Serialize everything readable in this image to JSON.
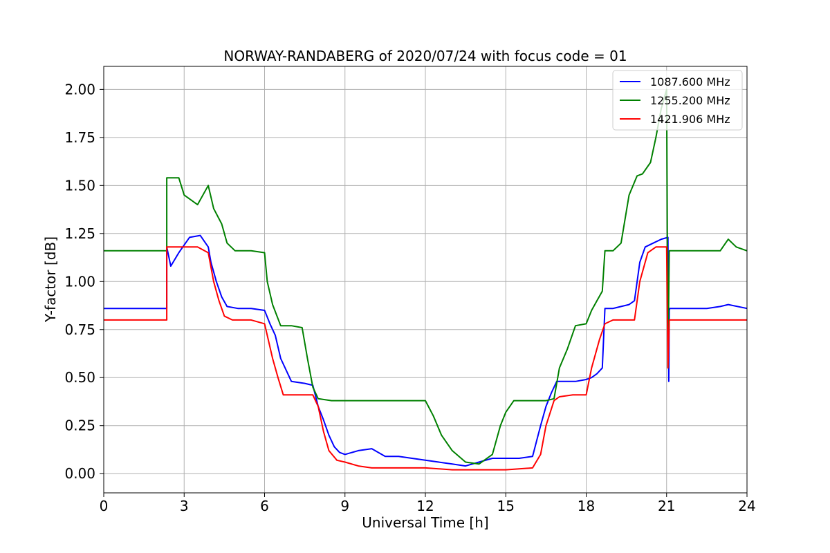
{
  "chart_data": {
    "type": "line",
    "title": "NORWAY-RANDABERG of 2020/07/24 with focus code = 01",
    "xlabel": "Universal Time [h]",
    "ylabel": "Y-factor [dB]",
    "xlim": [
      0,
      24
    ],
    "ylim": [
      -0.1,
      2.12
    ],
    "xticks": [
      0,
      3,
      6,
      9,
      12,
      15,
      18,
      21,
      24
    ],
    "xtick_labels": [
      "0",
      "3",
      "6",
      "9",
      "12",
      "15",
      "18",
      "21",
      "24"
    ],
    "yticks": [
      0.0,
      0.25,
      0.5,
      0.75,
      1.0,
      1.25,
      1.5,
      1.75,
      2.0
    ],
    "ytick_labels": [
      "0.00",
      "0.25",
      "0.50",
      "0.75",
      "1.00",
      "1.25",
      "1.50",
      "1.75",
      "2.00"
    ],
    "grid": true,
    "legend_position": "top-right",
    "series": [
      {
        "name": "1087.600 MHz",
        "color": "#0000ff",
        "x": [
          0,
          2.35,
          2.35,
          2.5,
          2.8,
          3.2,
          3.6,
          3.9,
          4.0,
          4.2,
          4.4,
          4.6,
          5.0,
          5.5,
          6.0,
          6.2,
          6.4,
          6.6,
          7.0,
          7.5,
          7.8,
          8.0,
          8.2,
          8.4,
          8.6,
          8.8,
          9.0,
          9.5,
          10.0,
          10.5,
          11.0,
          11.5,
          12.0,
          12.5,
          13.0,
          13.5,
          14.0,
          14.5,
          15.0,
          15.5,
          16.0,
          16.3,
          16.5,
          16.7,
          16.9,
          17.2,
          17.6,
          18.0,
          18.2,
          18.4,
          18.6,
          18.7,
          19.0,
          19.3,
          19.6,
          19.8,
          20.0,
          20.2,
          20.5,
          20.8,
          21.05,
          21.08,
          21.1,
          21.12,
          22.0,
          22.5,
          23.0,
          23.3,
          24.0
        ],
        "y": [
          0.86,
          0.86,
          1.18,
          1.08,
          1.15,
          1.23,
          1.24,
          1.18,
          1.1,
          1.0,
          0.92,
          0.87,
          0.86,
          0.86,
          0.85,
          0.78,
          0.72,
          0.6,
          0.48,
          0.47,
          0.46,
          0.35,
          0.28,
          0.2,
          0.14,
          0.11,
          0.1,
          0.12,
          0.13,
          0.09,
          0.09,
          0.08,
          0.07,
          0.06,
          0.05,
          0.04,
          0.06,
          0.08,
          0.08,
          0.08,
          0.09,
          0.25,
          0.35,
          0.42,
          0.48,
          0.48,
          0.48,
          0.49,
          0.5,
          0.52,
          0.55,
          0.86,
          0.86,
          0.87,
          0.88,
          0.9,
          1.1,
          1.18,
          1.2,
          1.22,
          1.23,
          0.48,
          0.85,
          0.86,
          0.86,
          0.86,
          0.87,
          0.88,
          0.86
        ]
      },
      {
        "name": "1255.200 MHz",
        "color": "#008000",
        "x": [
          0,
          2.35,
          2.35,
          2.8,
          3.0,
          3.5,
          3.9,
          4.1,
          4.4,
          4.6,
          4.9,
          5.5,
          6.0,
          6.1,
          6.3,
          6.6,
          7.0,
          7.4,
          7.6,
          7.8,
          8.0,
          8.5,
          9.0,
          10.0,
          11.0,
          11.5,
          12.0,
          12.3,
          12.6,
          13.0,
          13.5,
          14.0,
          14.5,
          14.8,
          15.0,
          15.3,
          15.7,
          16.0,
          16.5,
          16.8,
          17.0,
          17.3,
          17.6,
          18.0,
          18.2,
          18.4,
          18.6,
          18.7,
          19.0,
          19.3,
          19.6,
          19.9,
          20.1,
          20.4,
          20.6,
          20.8,
          21.0,
          21.05,
          21.1,
          22.0,
          22.5,
          23.0,
          23.3,
          23.6,
          24.0
        ],
        "y": [
          1.16,
          1.16,
          1.54,
          1.54,
          1.45,
          1.4,
          1.5,
          1.38,
          1.3,
          1.2,
          1.16,
          1.16,
          1.15,
          1.0,
          0.88,
          0.77,
          0.77,
          0.76,
          0.6,
          0.45,
          0.39,
          0.38,
          0.38,
          0.38,
          0.38,
          0.38,
          0.38,
          0.3,
          0.2,
          0.12,
          0.06,
          0.05,
          0.1,
          0.25,
          0.32,
          0.38,
          0.38,
          0.38,
          0.38,
          0.39,
          0.55,
          0.65,
          0.77,
          0.78,
          0.85,
          0.9,
          0.95,
          1.16,
          1.16,
          1.2,
          1.45,
          1.55,
          1.56,
          1.62,
          1.75,
          1.9,
          2.0,
          0.55,
          1.16,
          1.16,
          1.16,
          1.16,
          1.22,
          1.18,
          1.16
        ]
      },
      {
        "name": "1421.906 MHz",
        "color": "#ff0000",
        "x": [
          0,
          2.35,
          2.35,
          2.7,
          3.0,
          3.5,
          3.9,
          4.1,
          4.3,
          4.5,
          4.8,
          5.5,
          6.0,
          6.1,
          6.3,
          6.5,
          6.7,
          7.0,
          7.5,
          7.8,
          8.0,
          8.2,
          8.4,
          8.7,
          9.0,
          9.5,
          10.0,
          11.0,
          12.0,
          13.0,
          14.0,
          15.0,
          16.0,
          16.3,
          16.5,
          16.8,
          17.0,
          17.5,
          18.0,
          18.2,
          18.5,
          18.7,
          19.0,
          19.5,
          19.8,
          20.0,
          20.3,
          20.6,
          21.0,
          21.05,
          21.1,
          22.0,
          23.0,
          23.3,
          24.0
        ],
        "y": [
          0.8,
          0.8,
          1.18,
          1.18,
          1.18,
          1.18,
          1.15,
          1.0,
          0.9,
          0.82,
          0.8,
          0.8,
          0.78,
          0.72,
          0.6,
          0.5,
          0.41,
          0.41,
          0.41,
          0.41,
          0.35,
          0.22,
          0.12,
          0.07,
          0.06,
          0.04,
          0.03,
          0.03,
          0.03,
          0.02,
          0.02,
          0.02,
          0.03,
          0.1,
          0.25,
          0.38,
          0.4,
          0.41,
          0.41,
          0.55,
          0.7,
          0.78,
          0.8,
          0.8,
          0.8,
          1.0,
          1.15,
          1.18,
          1.18,
          0.55,
          0.8,
          0.8,
          0.8,
          0.8,
          0.8
        ]
      }
    ]
  }
}
